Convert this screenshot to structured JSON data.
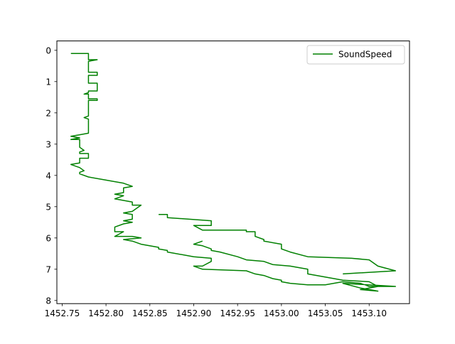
{
  "chart_data": {
    "type": "line",
    "xlabel": "",
    "ylabel": "",
    "xlim": [
      1452.744,
      1453.146
    ],
    "ylim": [
      8.1,
      -0.3
    ],
    "y_inverted": true,
    "grid": false,
    "legend_placement": "top-right",
    "x_ticks": [
      1452.75,
      1452.8,
      1452.85,
      1452.9,
      1452.95,
      1453.0,
      1453.05,
      1453.1
    ],
    "x_tick_labels": [
      "1452.75",
      "1452.80",
      "1452.85",
      "1452.90",
      "1452.95",
      "1453.00",
      "1453.05",
      "1453.10"
    ],
    "y_ticks": [
      0,
      1,
      2,
      3,
      4,
      5,
      6,
      7,
      8
    ],
    "y_tick_labels": [
      "0",
      "1",
      "2",
      "3",
      "4",
      "5",
      "6",
      "7",
      "8"
    ],
    "series": [
      {
        "name": "SoundSpeed",
        "color": "#008000",
        "x": [
          1452.76,
          1452.78,
          1452.78,
          1452.79,
          1452.78,
          1452.78,
          1452.79,
          1452.79,
          1452.78,
          1452.78,
          1452.79,
          1452.79,
          1452.78,
          1452.78,
          1452.775,
          1452.78,
          1452.78,
          1452.79,
          1452.79,
          1452.78,
          1452.78,
          1452.775,
          1452.78,
          1452.78,
          1452.78,
          1452.77,
          1452.76,
          1452.77,
          1452.76,
          1452.77,
          1452.77,
          1452.775,
          1452.77,
          1452.77,
          1452.78,
          1452.78,
          1452.77,
          1452.77,
          1452.76,
          1452.77,
          1452.775,
          1452.77,
          1452.77,
          1452.78,
          1452.8,
          1452.82,
          1452.83,
          1452.82,
          1452.82,
          1452.81,
          1452.82,
          1452.81,
          1452.82,
          1452.83,
          1452.83,
          1452.84,
          1452.83,
          1452.82,
          1452.83,
          1452.83,
          1452.82,
          1452.83,
          1452.82,
          1452.81,
          1452.81,
          1452.82,
          1452.81,
          1452.83,
          1452.84,
          1452.82,
          1452.83,
          1452.84,
          1452.86,
          1452.86,
          1452.87,
          1452.87,
          1452.9,
          1452.92,
          1452.92,
          1452.91,
          1452.9,
          1452.91,
          1452.96,
          1452.96,
          1452.97,
          1452.97,
          1452.98,
          1452.99,
          1453.0,
          1453.0,
          1453.01,
          1453.03,
          1453.05,
          1453.07,
          1453.09,
          1453.1,
          1453.13,
          1453.07,
          1453.09,
          1453.1,
          1453.11,
          1453.09,
          1453.1,
          1453.11,
          1453.1,
          1453.07,
          1453.06,
          1453.03,
          1453.03,
          1453.01,
          1452.99,
          1452.98,
          1452.96,
          1452.95,
          1452.93,
          1452.92,
          1452.92,
          1452.91,
          1452.9,
          1452.91
        ],
        "y": [
          0.1,
          0.1,
          0.3,
          0.3,
          0.35,
          0.7,
          0.7,
          0.8,
          0.8,
          1.05,
          1.05,
          1.3,
          1.3,
          1.35,
          1.4,
          1.4,
          1.55,
          1.55,
          1.6,
          1.6,
          2.1,
          2.15,
          2.2,
          2.6,
          2.65,
          2.7,
          2.75,
          2.8,
          2.85,
          2.85,
          3.1,
          3.2,
          3.25,
          3.3,
          3.3,
          3.45,
          3.45,
          3.6,
          3.65,
          3.75,
          3.85,
          3.9,
          3.95,
          4.05,
          4.15,
          4.25,
          4.35,
          4.4,
          4.55,
          4.6,
          4.65,
          4.75,
          4.8,
          4.85,
          4.95,
          4.95,
          5.15,
          5.2,
          5.25,
          5.4,
          5.45,
          5.5,
          5.55,
          5.65,
          5.8,
          5.8,
          5.95,
          5.95,
          6.0,
          6.05,
          6.1,
          6.2,
          6.3,
          6.35,
          6.4,
          6.45,
          6.6,
          6.65,
          6.75,
          6.9,
          6.9,
          7.0,
          7.05,
          7.05,
          7.15,
          7.15,
          7.2,
          7.3,
          7.35,
          7.4,
          7.45,
          7.5,
          7.5,
          7.4,
          7.45,
          7.55,
          7.55,
          7.45,
          7.6,
          7.65,
          7.7,
          7.65,
          7.6,
          7.55,
          7.4,
          7.35,
          7.3,
          7.15,
          7.0,
          6.9,
          6.85,
          6.75,
          6.7,
          6.6,
          6.45,
          6.4,
          6.35,
          6.25,
          6.2,
          6.1
        ],
        "extra_segments": [
          {
            "x": [
              1452.86,
              1452.87,
              1452.87,
              1452.92,
              1452.92,
              1452.9,
              1452.91,
              1452.96,
              1452.96,
              1452.97,
              1452.97,
              1452.98,
              1452.98,
              1453.0,
              1453.0,
              1453.01,
              1453.03,
              1453.08,
              1453.1,
              1453.11,
              1453.13,
              1453.07
            ],
            "y": [
              5.25,
              5.25,
              5.35,
              5.45,
              5.6,
              5.6,
              5.75,
              5.75,
              5.8,
              5.8,
              5.95,
              6.05,
              6.1,
              6.2,
              6.35,
              6.45,
              6.6,
              6.65,
              6.7,
              6.9,
              7.05,
              7.15
            ]
          }
        ]
      }
    ]
  }
}
